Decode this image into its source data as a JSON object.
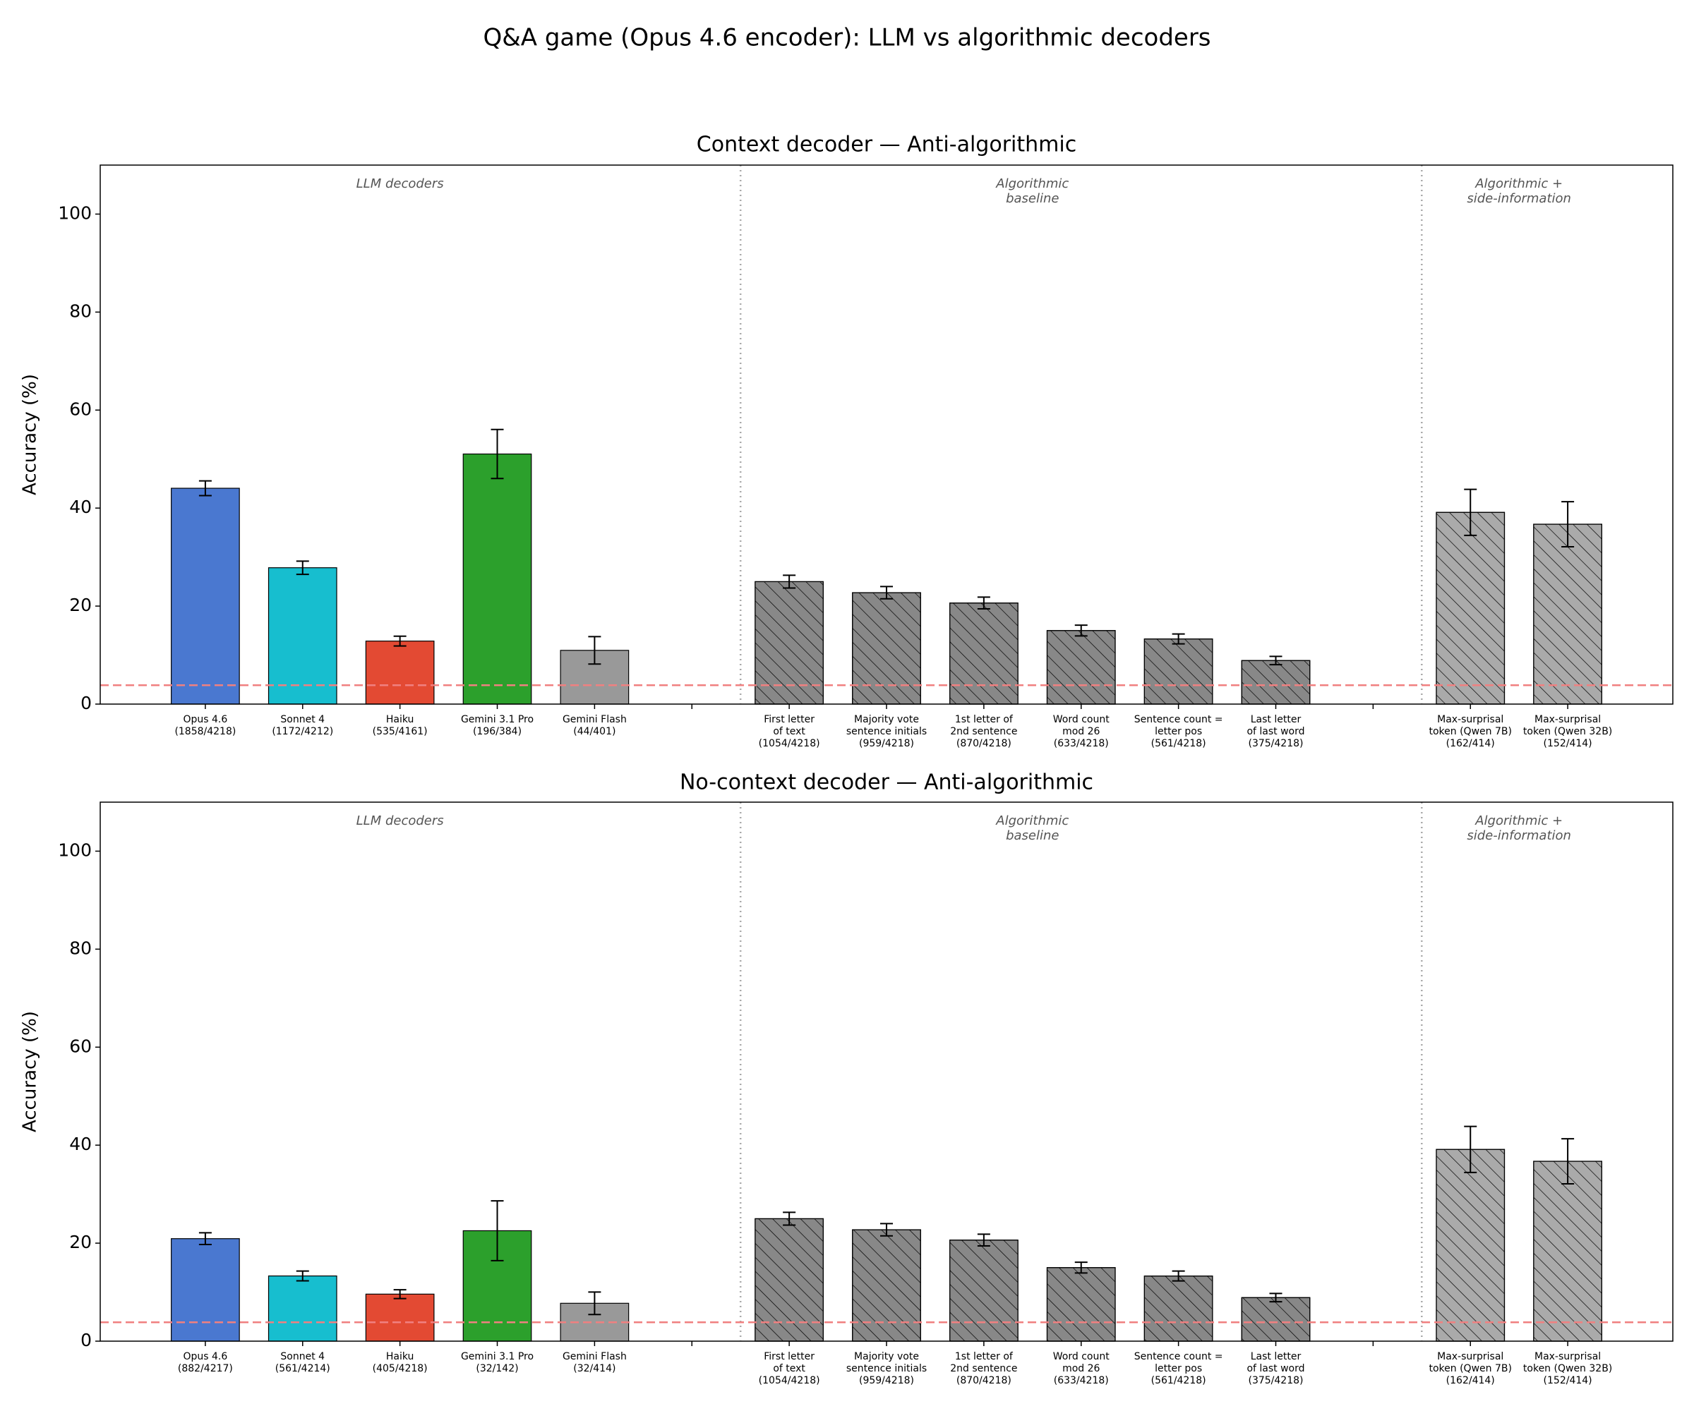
{
  "title": "Q&A game (Opus 4.6 encoder): LLM vs algorithmic decoders",
  "chart_data": [
    {
      "type": "bar",
      "title": "Context decoder — Anti-algorithmic",
      "y_label": "Accuracy (%)",
      "categories": [
        "Opus 4.6\n(1858/4218)",
        "Sonnet 4\n(1172/4212)",
        "Haiku\n(535/4161)",
        "Gemini 3.1 Pro\n(196/384)",
        "Gemini Flash\n(44/401)",
        null,
        "First letter\nof text\n(1054/4218)",
        "Majority vote\nsentence initials\n(959/4218)",
        "1st letter of\n2nd sentence\n(870/4218)",
        "Word count\nmod 26\n(633/4218)",
        "Sentence count =\nletter pos\n(561/4218)",
        "Last letter\nof last word\n(375/4218)",
        null,
        "Max-surprisal\ntoken (Qwen 7B)\n(162/414)",
        "Max-surprisal\ntoken (Qwen 32B)\n(152/414)"
      ],
      "values": [
        44.05,
        27.83,
        12.86,
        51.04,
        10.97,
        null,
        24.99,
        22.74,
        20.63,
        15.01,
        13.3,
        8.89,
        null,
        39.13,
        36.71
      ],
      "errors": [
        1.5,
        1.35,
        1.0,
        5.0,
        2.8,
        null,
        1.3,
        1.25,
        1.2,
        1.1,
        1.0,
        0.85,
        null,
        4.7,
        4.6
      ],
      "colors": [
        "#4a78d0",
        "#17becf",
        "#e34a33",
        "#2ca02c",
        "#999999",
        null,
        "#888888",
        "#888888",
        "#888888",
        "#888888",
        "#888888",
        "#888888",
        null,
        "#aaaaaa",
        "#aaaaaa"
      ],
      "hatched": [
        false,
        false,
        false,
        false,
        false,
        null,
        true,
        true,
        true,
        true,
        true,
        true,
        null,
        true,
        true
      ],
      "groups": [
        {
          "label": "LLM decoders",
          "from": 0,
          "to": 4
        },
        {
          "label": "Algorithmic\nbaseline",
          "from": 6,
          "to": 11
        },
        {
          "label": "Algorithmic +\nside-information",
          "from": 13,
          "to": 14
        }
      ],
      "reference_line": {
        "value": 3.85,
        "color": "#f08080",
        "style": "dashed"
      },
      "ylim": [
        0,
        110
      ],
      "yticks": [
        0,
        20,
        40,
        60,
        80,
        100
      ]
    },
    {
      "type": "bar",
      "title": "No-context decoder — Anti-algorithmic",
      "y_label": "Accuracy (%)",
      "categories": [
        "Opus 4.6\n(882/4217)",
        "Sonnet 4\n(561/4214)",
        "Haiku\n(405/4218)",
        "Gemini 3.1 Pro\n(32/142)",
        "Gemini Flash\n(32/414)",
        null,
        "First letter\nof text\n(1054/4218)",
        "Majority vote\nsentence initials\n(959/4218)",
        "1st letter of\n2nd sentence\n(870/4218)",
        "Word count\nmod 26\n(633/4218)",
        "Sentence count =\nletter pos\n(561/4218)",
        "Last letter\nof last word\n(375/4218)",
        null,
        "Max-surprisal\ntoken (Qwen 7B)\n(162/414)",
        "Max-surprisal\ntoken (Qwen 32B)\n(152/414)"
      ],
      "values": [
        20.92,
        13.31,
        9.6,
        22.54,
        7.73,
        null,
        24.99,
        22.74,
        20.63,
        15.01,
        13.3,
        8.89,
        null,
        39.13,
        36.71
      ],
      "errors": [
        1.2,
        1.0,
        0.9,
        6.1,
        2.3,
        null,
        1.3,
        1.25,
        1.2,
        1.1,
        1.0,
        0.85,
        null,
        4.7,
        4.6
      ],
      "colors": [
        "#4a78d0",
        "#17becf",
        "#e34a33",
        "#2ca02c",
        "#999999",
        null,
        "#888888",
        "#888888",
        "#888888",
        "#888888",
        "#888888",
        "#888888",
        null,
        "#aaaaaa",
        "#aaaaaa"
      ],
      "hatched": [
        false,
        false,
        false,
        false,
        false,
        null,
        true,
        true,
        true,
        true,
        true,
        true,
        null,
        true,
        true
      ],
      "groups": [
        {
          "label": "LLM decoders",
          "from": 0,
          "to": 4
        },
        {
          "label": "Algorithmic\nbaseline",
          "from": 6,
          "to": 11
        },
        {
          "label": "Algorithmic +\nside-information",
          "from": 13,
          "to": 14
        }
      ],
      "reference_line": {
        "value": 3.85,
        "color": "#f08080",
        "style": "dashed"
      },
      "ylim": [
        0,
        110
      ],
      "yticks": [
        0,
        20,
        40,
        60,
        80,
        100
      ]
    }
  ]
}
